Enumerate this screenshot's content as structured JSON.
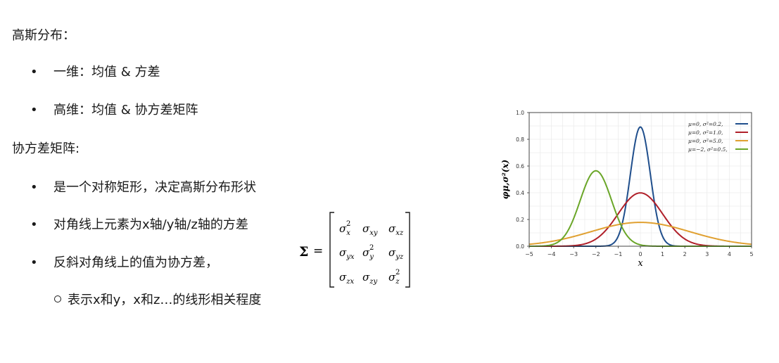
{
  "text": {
    "heading_gaussian": "高斯分布：",
    "bullet_1d": "一维：均值 & 方差",
    "bullet_nd": "高维：均值 & 协方差矩阵",
    "heading_cov": "协方差矩阵:",
    "bullet_symmetric": "是一个对称矩形，决定高斯分布形状",
    "bullet_diagonal": "对角线上元素为x轴/y轴/z轴的方差",
    "bullet_antidiagonal": "反斜对角线上的值为协方差，",
    "sub_bullet": "表示x和y，x和z…的线形相关程度"
  },
  "matrix": {
    "symbol": "Σ",
    "equals": "=",
    "rows": [
      [
        {
          "base": "σ",
          "sub": "x",
          "sup": "2"
        },
        {
          "base": "σ",
          "sub": "xy",
          "sup": ""
        },
        {
          "base": "σ",
          "sub": "xz",
          "sup": ""
        }
      ],
      [
        {
          "base": "σ",
          "sub": "yx",
          "sup": ""
        },
        {
          "base": "σ",
          "sub": "y",
          "sup": "2"
        },
        {
          "base": "σ",
          "sub": "yz",
          "sup": ""
        }
      ],
      [
        {
          "base": "σ",
          "sub": "zx",
          "sup": ""
        },
        {
          "base": "σ",
          "sub": "zy",
          "sup": ""
        },
        {
          "base": "σ",
          "sub": "z",
          "sup": "2"
        }
      ]
    ]
  },
  "chart_data": {
    "type": "line",
    "title": "",
    "xlabel": "x",
    "ylabel": "φμ,σ²(x)",
    "xlim": [
      -5,
      5
    ],
    "ylim": [
      0,
      1.0
    ],
    "xticks": [
      "−5",
      "−4",
      "−3",
      "−2",
      "−1",
      "0",
      "1",
      "2",
      "3",
      "4",
      "5"
    ],
    "yticks": [
      "0.0",
      "0.2",
      "0.4",
      "0.6",
      "0.8",
      "1.0"
    ],
    "grid": true,
    "legend_position": "top-right",
    "series": [
      {
        "name": "μ=0,   σ²=0.2,",
        "mu": 0,
        "variance": 0.2,
        "color": "#1f4e8c"
      },
      {
        "name": "μ=0,   σ²=1.0,",
        "mu": 0,
        "variance": 1.0,
        "color": "#b0202a"
      },
      {
        "name": "μ=0,   σ²=5.0,",
        "mu": 0,
        "variance": 5.0,
        "color": "#e0a030"
      },
      {
        "name": "μ=−2, σ²=0.5,",
        "mu": -2,
        "variance": 0.5,
        "color": "#6aa628"
      }
    ]
  }
}
